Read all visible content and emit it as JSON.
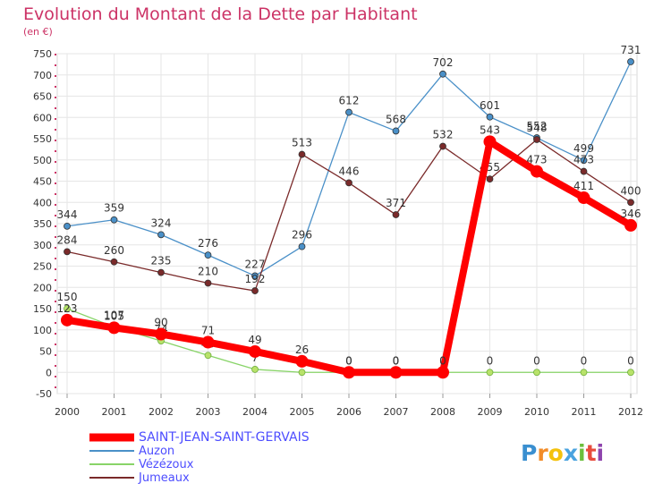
{
  "chart_data": {
    "type": "line",
    "title": "Evolution du Montant de la Dette par Habitant",
    "subtitle": "(en €)",
    "x": [
      "2000",
      "2001",
      "2002",
      "2003",
      "2004",
      "2005",
      "2006",
      "2007",
      "2008",
      "2009",
      "2010",
      "2011",
      "2012"
    ],
    "ylim": [
      -50,
      750
    ],
    "yticks": [
      -50,
      0,
      50,
      100,
      150,
      200,
      250,
      300,
      350,
      400,
      450,
      500,
      550,
      600,
      650,
      700,
      750
    ],
    "grid": true,
    "legend_position": "bottom-left",
    "series": [
      {
        "name": "SAINT-JEAN-SAINT-GERVAIS",
        "color": "#ff0000",
        "values": [
          123,
          105,
          90,
          71,
          49,
          26,
          0,
          0,
          0,
          543,
          473,
          411,
          346
        ]
      },
      {
        "name": "Auzon",
        "color": "#4a90c8",
        "values": [
          344,
          359,
          324,
          276,
          227,
          296,
          612,
          568,
          702,
          601,
          552,
          499,
          731
        ]
      },
      {
        "name": "Vézézoux",
        "color": "#88d468",
        "values": [
          150,
          107,
          74,
          40,
          7,
          0,
          0,
          0,
          0,
          0,
          0,
          0,
          0
        ]
      },
      {
        "name": "Jumeaux",
        "color": "#7a2a2a",
        "values": [
          284,
          260,
          235,
          210,
          192,
          513,
          446,
          371,
          532,
          455,
          548,
          473,
          400
        ]
      }
    ]
  },
  "colors": {
    "title": "#cc3366",
    "legend_text": "#4d4dff",
    "grid": "#e6e6e6"
  },
  "logo": {
    "text": "Proxiti"
  }
}
